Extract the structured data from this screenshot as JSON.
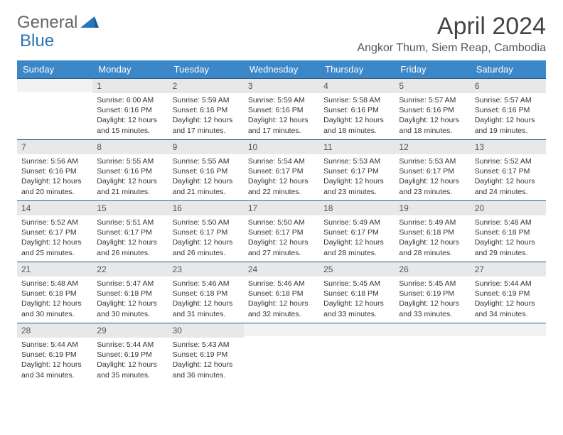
{
  "logo": {
    "text1": "General",
    "text2": "Blue"
  },
  "title": "April 2024",
  "location": "Angkor Thum, Siem Reap, Cambodia",
  "colors": {
    "header_bg": "#3b87c8",
    "header_text": "#ffffff",
    "daynum_bg": "#e8e8e8",
    "border": "#2a5a8a",
    "logo_blue": "#2876b8",
    "logo_gray": "#666666",
    "body_text": "#333333"
  },
  "fonts": {
    "title_size": 34,
    "location_size": 16,
    "header_size": 13,
    "daynum_size": 12,
    "cell_size": 10.5
  },
  "weekdays": [
    "Sunday",
    "Monday",
    "Tuesday",
    "Wednesday",
    "Thursday",
    "Friday",
    "Saturday"
  ],
  "weeks": [
    [
      {
        "n": "",
        "l": [
          "",
          "",
          "",
          ""
        ]
      },
      {
        "n": "1",
        "l": [
          "Sunrise: 6:00 AM",
          "Sunset: 6:16 PM",
          "Daylight: 12 hours",
          "and 15 minutes."
        ]
      },
      {
        "n": "2",
        "l": [
          "Sunrise: 5:59 AM",
          "Sunset: 6:16 PM",
          "Daylight: 12 hours",
          "and 17 minutes."
        ]
      },
      {
        "n": "3",
        "l": [
          "Sunrise: 5:59 AM",
          "Sunset: 6:16 PM",
          "Daylight: 12 hours",
          "and 17 minutes."
        ]
      },
      {
        "n": "4",
        "l": [
          "Sunrise: 5:58 AM",
          "Sunset: 6:16 PM",
          "Daylight: 12 hours",
          "and 18 minutes."
        ]
      },
      {
        "n": "5",
        "l": [
          "Sunrise: 5:57 AM",
          "Sunset: 6:16 PM",
          "Daylight: 12 hours",
          "and 18 minutes."
        ]
      },
      {
        "n": "6",
        "l": [
          "Sunrise: 5:57 AM",
          "Sunset: 6:16 PM",
          "Daylight: 12 hours",
          "and 19 minutes."
        ]
      }
    ],
    [
      {
        "n": "7",
        "l": [
          "Sunrise: 5:56 AM",
          "Sunset: 6:16 PM",
          "Daylight: 12 hours",
          "and 20 minutes."
        ]
      },
      {
        "n": "8",
        "l": [
          "Sunrise: 5:55 AM",
          "Sunset: 6:16 PM",
          "Daylight: 12 hours",
          "and 21 minutes."
        ]
      },
      {
        "n": "9",
        "l": [
          "Sunrise: 5:55 AM",
          "Sunset: 6:16 PM",
          "Daylight: 12 hours",
          "and 21 minutes."
        ]
      },
      {
        "n": "10",
        "l": [
          "Sunrise: 5:54 AM",
          "Sunset: 6:17 PM",
          "Daylight: 12 hours",
          "and 22 minutes."
        ]
      },
      {
        "n": "11",
        "l": [
          "Sunrise: 5:53 AM",
          "Sunset: 6:17 PM",
          "Daylight: 12 hours",
          "and 23 minutes."
        ]
      },
      {
        "n": "12",
        "l": [
          "Sunrise: 5:53 AM",
          "Sunset: 6:17 PM",
          "Daylight: 12 hours",
          "and 23 minutes."
        ]
      },
      {
        "n": "13",
        "l": [
          "Sunrise: 5:52 AM",
          "Sunset: 6:17 PM",
          "Daylight: 12 hours",
          "and 24 minutes."
        ]
      }
    ],
    [
      {
        "n": "14",
        "l": [
          "Sunrise: 5:52 AM",
          "Sunset: 6:17 PM",
          "Daylight: 12 hours",
          "and 25 minutes."
        ]
      },
      {
        "n": "15",
        "l": [
          "Sunrise: 5:51 AM",
          "Sunset: 6:17 PM",
          "Daylight: 12 hours",
          "and 26 minutes."
        ]
      },
      {
        "n": "16",
        "l": [
          "Sunrise: 5:50 AM",
          "Sunset: 6:17 PM",
          "Daylight: 12 hours",
          "and 26 minutes."
        ]
      },
      {
        "n": "17",
        "l": [
          "Sunrise: 5:50 AM",
          "Sunset: 6:17 PM",
          "Daylight: 12 hours",
          "and 27 minutes."
        ]
      },
      {
        "n": "18",
        "l": [
          "Sunrise: 5:49 AM",
          "Sunset: 6:17 PM",
          "Daylight: 12 hours",
          "and 28 minutes."
        ]
      },
      {
        "n": "19",
        "l": [
          "Sunrise: 5:49 AM",
          "Sunset: 6:18 PM",
          "Daylight: 12 hours",
          "and 28 minutes."
        ]
      },
      {
        "n": "20",
        "l": [
          "Sunrise: 5:48 AM",
          "Sunset: 6:18 PM",
          "Daylight: 12 hours",
          "and 29 minutes."
        ]
      }
    ],
    [
      {
        "n": "21",
        "l": [
          "Sunrise: 5:48 AM",
          "Sunset: 6:18 PM",
          "Daylight: 12 hours",
          "and 30 minutes."
        ]
      },
      {
        "n": "22",
        "l": [
          "Sunrise: 5:47 AM",
          "Sunset: 6:18 PM",
          "Daylight: 12 hours",
          "and 30 minutes."
        ]
      },
      {
        "n": "23",
        "l": [
          "Sunrise: 5:46 AM",
          "Sunset: 6:18 PM",
          "Daylight: 12 hours",
          "and 31 minutes."
        ]
      },
      {
        "n": "24",
        "l": [
          "Sunrise: 5:46 AM",
          "Sunset: 6:18 PM",
          "Daylight: 12 hours",
          "and 32 minutes."
        ]
      },
      {
        "n": "25",
        "l": [
          "Sunrise: 5:45 AM",
          "Sunset: 6:18 PM",
          "Daylight: 12 hours",
          "and 33 minutes."
        ]
      },
      {
        "n": "26",
        "l": [
          "Sunrise: 5:45 AM",
          "Sunset: 6:19 PM",
          "Daylight: 12 hours",
          "and 33 minutes."
        ]
      },
      {
        "n": "27",
        "l": [
          "Sunrise: 5:44 AM",
          "Sunset: 6:19 PM",
          "Daylight: 12 hours",
          "and 34 minutes."
        ]
      }
    ],
    [
      {
        "n": "28",
        "l": [
          "Sunrise: 5:44 AM",
          "Sunset: 6:19 PM",
          "Daylight: 12 hours",
          "and 34 minutes."
        ]
      },
      {
        "n": "29",
        "l": [
          "Sunrise: 5:44 AM",
          "Sunset: 6:19 PM",
          "Daylight: 12 hours",
          "and 35 minutes."
        ]
      },
      {
        "n": "30",
        "l": [
          "Sunrise: 5:43 AM",
          "Sunset: 6:19 PM",
          "Daylight: 12 hours",
          "and 36 minutes."
        ]
      },
      {
        "n": "",
        "l": [
          "",
          "",
          "",
          ""
        ]
      },
      {
        "n": "",
        "l": [
          "",
          "",
          "",
          ""
        ]
      },
      {
        "n": "",
        "l": [
          "",
          "",
          "",
          ""
        ]
      },
      {
        "n": "",
        "l": [
          "",
          "",
          "",
          ""
        ]
      }
    ]
  ]
}
